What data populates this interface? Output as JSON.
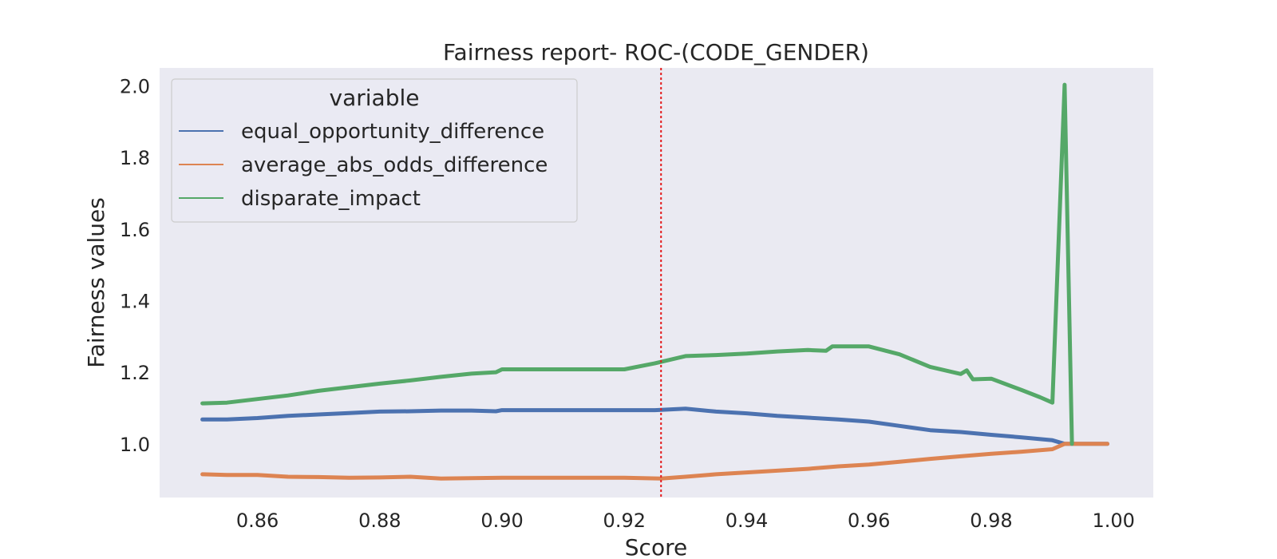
{
  "chart_data": {
    "type": "line",
    "title": "Fairness report- ROC-(CODE_GENDER)",
    "xlabel": "Score",
    "ylabel": "Fairness values",
    "xlim": [
      0.844,
      1.0065
    ],
    "ylim": [
      0.85,
      2.05
    ],
    "x_ticks": [
      0.86,
      0.88,
      0.9,
      0.92,
      0.94,
      0.96,
      0.98,
      1.0
    ],
    "x_tick_labels": [
      "0.86",
      "0.88",
      "0.90",
      "0.92",
      "0.94",
      "0.96",
      "0.98",
      "1.00"
    ],
    "y_ticks": [
      1.0,
      1.2,
      1.4,
      1.6,
      1.8,
      2.0
    ],
    "y_tick_labels": [
      "1.0",
      "1.2",
      "1.4",
      "1.6",
      "1.8",
      "2.0"
    ],
    "grid": false,
    "background_color": "#eaeaf2",
    "threshold": {
      "x": 0.926,
      "color": "#e31a1c",
      "style": "dotted"
    },
    "legend": {
      "title": "variable",
      "placement": "top-left"
    },
    "series": [
      {
        "name": "equal_opportunity_difference",
        "color": "#4c72b0",
        "points": [
          [
            0.851,
            1.068
          ],
          [
            0.855,
            1.068
          ],
          [
            0.86,
            1.072
          ],
          [
            0.865,
            1.078
          ],
          [
            0.87,
            1.082
          ],
          [
            0.875,
            1.086
          ],
          [
            0.88,
            1.09
          ],
          [
            0.885,
            1.091
          ],
          [
            0.89,
            1.093
          ],
          [
            0.895,
            1.093
          ],
          [
            0.899,
            1.091
          ],
          [
            0.9,
            1.094
          ],
          [
            0.91,
            1.094
          ],
          [
            0.92,
            1.094
          ],
          [
            0.925,
            1.094
          ],
          [
            0.93,
            1.098
          ],
          [
            0.935,
            1.09
          ],
          [
            0.94,
            1.085
          ],
          [
            0.945,
            1.078
          ],
          [
            0.95,
            1.073
          ],
          [
            0.955,
            1.068
          ],
          [
            0.96,
            1.062
          ],
          [
            0.965,
            1.05
          ],
          [
            0.97,
            1.038
          ],
          [
            0.975,
            1.033
          ],
          [
            0.98,
            1.025
          ],
          [
            0.985,
            1.018
          ],
          [
            0.99,
            1.01
          ],
          [
            0.992,
            1.0
          ],
          [
            0.999,
            1.0
          ]
        ]
      },
      {
        "name": "average_abs_odds_difference",
        "color": "#dd8452",
        "points": [
          [
            0.851,
            0.915
          ],
          [
            0.855,
            0.913
          ],
          [
            0.86,
            0.913
          ],
          [
            0.865,
            0.908
          ],
          [
            0.87,
            0.907
          ],
          [
            0.875,
            0.905
          ],
          [
            0.88,
            0.906
          ],
          [
            0.885,
            0.908
          ],
          [
            0.89,
            0.903
          ],
          [
            0.895,
            0.904
          ],
          [
            0.9,
            0.905
          ],
          [
            0.91,
            0.905
          ],
          [
            0.92,
            0.905
          ],
          [
            0.926,
            0.903
          ],
          [
            0.93,
            0.908
          ],
          [
            0.935,
            0.915
          ],
          [
            0.94,
            0.92
          ],
          [
            0.945,
            0.925
          ],
          [
            0.95,
            0.93
          ],
          [
            0.955,
            0.937
          ],
          [
            0.96,
            0.942
          ],
          [
            0.965,
            0.95
          ],
          [
            0.97,
            0.958
          ],
          [
            0.975,
            0.965
          ],
          [
            0.98,
            0.972
          ],
          [
            0.985,
            0.978
          ],
          [
            0.99,
            0.985
          ],
          [
            0.992,
            1.0
          ],
          [
            0.999,
            1.0
          ]
        ]
      },
      {
        "name": "disparate_impact",
        "color": "#55a868",
        "points": [
          [
            0.851,
            1.113
          ],
          [
            0.855,
            1.115
          ],
          [
            0.86,
            1.125
          ],
          [
            0.865,
            1.135
          ],
          [
            0.87,
            1.148
          ],
          [
            0.875,
            1.158
          ],
          [
            0.88,
            1.168
          ],
          [
            0.885,
            1.177
          ],
          [
            0.89,
            1.187
          ],
          [
            0.895,
            1.196
          ],
          [
            0.899,
            1.2
          ],
          [
            0.9,
            1.208
          ],
          [
            0.91,
            1.208
          ],
          [
            0.92,
            1.208
          ],
          [
            0.925,
            1.225
          ],
          [
            0.93,
            1.245
          ],
          [
            0.935,
            1.248
          ],
          [
            0.94,
            1.252
          ],
          [
            0.945,
            1.258
          ],
          [
            0.95,
            1.262
          ],
          [
            0.953,
            1.26
          ],
          [
            0.954,
            1.272
          ],
          [
            0.96,
            1.272
          ],
          [
            0.965,
            1.25
          ],
          [
            0.97,
            1.215
          ],
          [
            0.975,
            1.195
          ],
          [
            0.976,
            1.205
          ],
          [
            0.977,
            1.18
          ],
          [
            0.98,
            1.182
          ],
          [
            0.985,
            1.15
          ],
          [
            0.988,
            1.13
          ],
          [
            0.99,
            1.115
          ],
          [
            0.992,
            2.003
          ],
          [
            0.9932,
            1.0
          ]
        ]
      }
    ]
  }
}
